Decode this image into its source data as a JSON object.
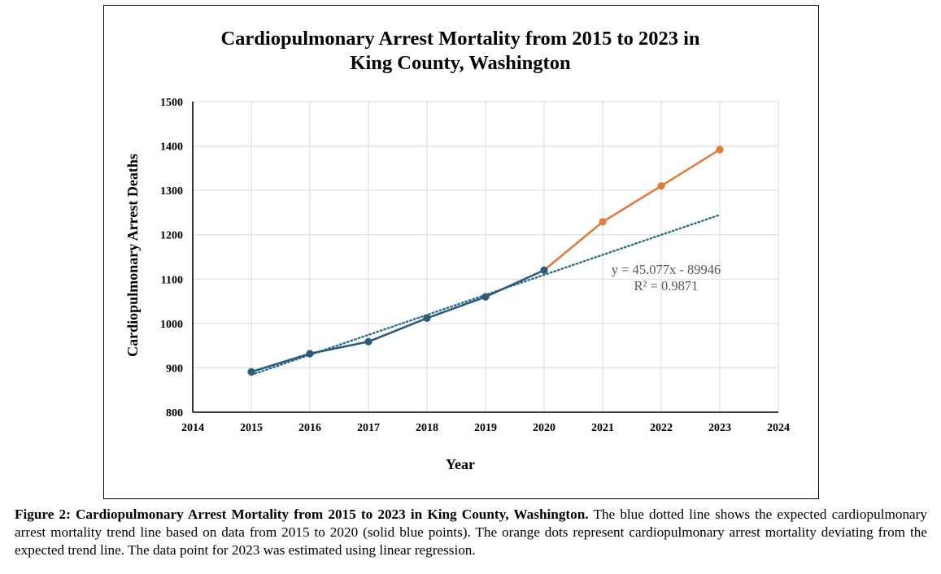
{
  "chart_data": {
    "type": "line",
    "title_lines": [
      "Cardiopulmonary Arrest Mortality from 2015 to 2023 in",
      "King County, Washington"
    ],
    "xlabel": "Year",
    "ylabel": "Cardiopulmonary Arrest Deaths",
    "xlim": [
      2014,
      2024
    ],
    "ylim": [
      800,
      1500
    ],
    "x_ticks": [
      2014,
      2015,
      2016,
      2017,
      2018,
      2019,
      2020,
      2021,
      2022,
      2023,
      2024
    ],
    "y_ticks": [
      800,
      900,
      1000,
      1100,
      1200,
      1300,
      1400,
      1500
    ],
    "grid": true,
    "series": [
      {
        "color": "#2e5b7c",
        "style": "solid-markers",
        "x": [
          2015,
          2016,
          2017,
          2018,
          2019,
          2020
        ],
        "y": [
          891,
          932,
          959,
          1012,
          1060,
          1120
        ]
      },
      {
        "color": "#e07b3e",
        "style": "solid-markers",
        "x": [
          2020,
          2021,
          2022,
          2023
        ],
        "y": [
          1120,
          1229,
          1310,
          1392
        ]
      }
    ],
    "trendline": {
      "color": "#2e6f8e",
      "style": "dotted",
      "slope": 45.077,
      "intercept": -89946,
      "x_range": [
        2015,
        2023
      ]
    },
    "annotations": [
      "y = 45.077x - 89946",
      "R² = 0.9871"
    ]
  },
  "caption": {
    "bold": "Figure 2: Cardiopulmonary Arrest Mortality from 2015 to 2023 in King County, Washington.",
    "text": " The blue dotted line shows the expected cardiopulmonary arrest mortality trend line based on data from 2015 to 2020 (solid blue points). The orange dots represent cardiopulmonary arrest mortality deviating from the expected trend line. The data point for 2023 was estimated using linear regression."
  }
}
